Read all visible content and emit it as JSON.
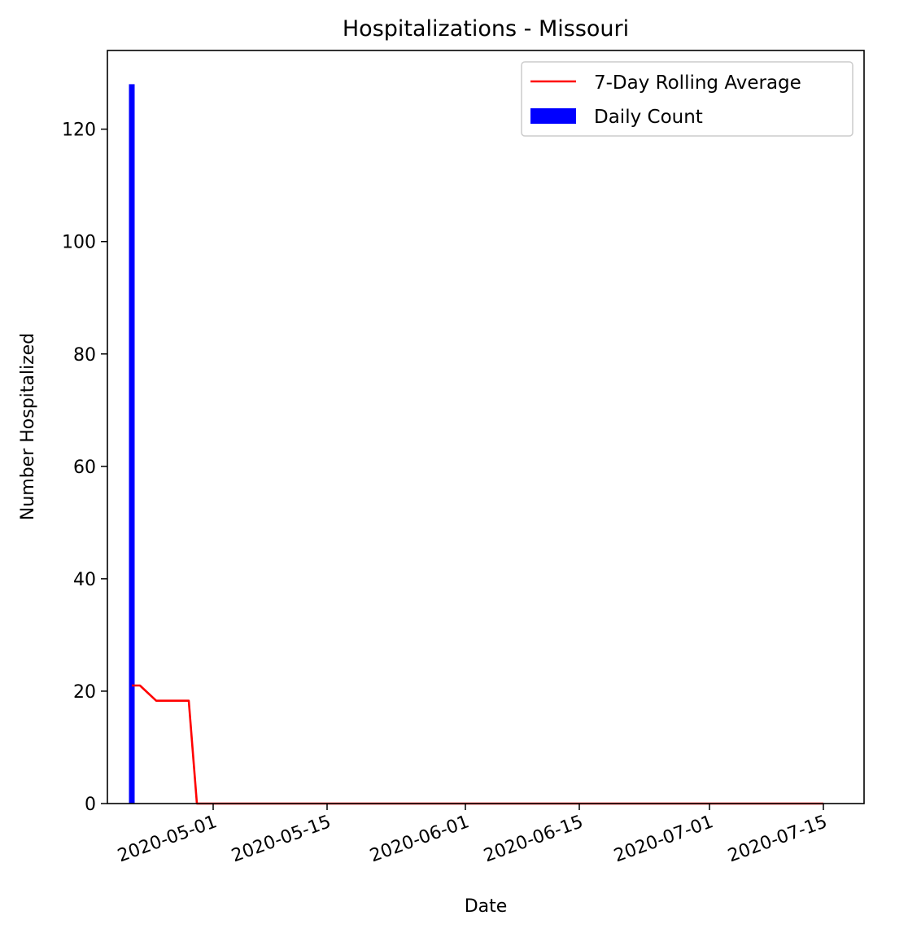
{
  "chart_data": {
    "type": "bar",
    "title": "Hospitalizations - Missouri",
    "xlabel": "Date",
    "ylabel": "Number Hospitalized",
    "xlim": [
      "2020-04-18",
      "2020-07-20"
    ],
    "ylim": [
      0,
      134
    ],
    "x_ticks": [
      "2020-05-01",
      "2020-05-15",
      "2020-06-01",
      "2020-06-15",
      "2020-07-01",
      "2020-07-15"
    ],
    "y_ticks": [
      0,
      20,
      40,
      60,
      80,
      100,
      120
    ],
    "legend": {
      "position": "top-right",
      "entries": [
        {
          "label": "7-Day Rolling Average",
          "kind": "line",
          "color": "#ff0000"
        },
        {
          "label": "Daily Count",
          "kind": "bar",
          "color": "#0000ff"
        }
      ]
    },
    "series": [
      {
        "name": "Daily Count",
        "type": "bar",
        "color": "#0000ff",
        "points": [
          {
            "x": "2020-04-21",
            "y": 128
          }
        ]
      },
      {
        "name": "7-Day Rolling Average",
        "type": "line",
        "color": "#ff0000",
        "points": [
          {
            "x": "2020-04-21",
            "y": 21
          },
          {
            "x": "2020-04-22",
            "y": 21
          },
          {
            "x": "2020-04-24",
            "y": 18.3
          },
          {
            "x": "2020-04-28",
            "y": 18.3
          },
          {
            "x": "2020-04-29",
            "y": 0
          },
          {
            "x": "2020-07-15",
            "y": 0
          }
        ]
      }
    ],
    "grid": false
  }
}
